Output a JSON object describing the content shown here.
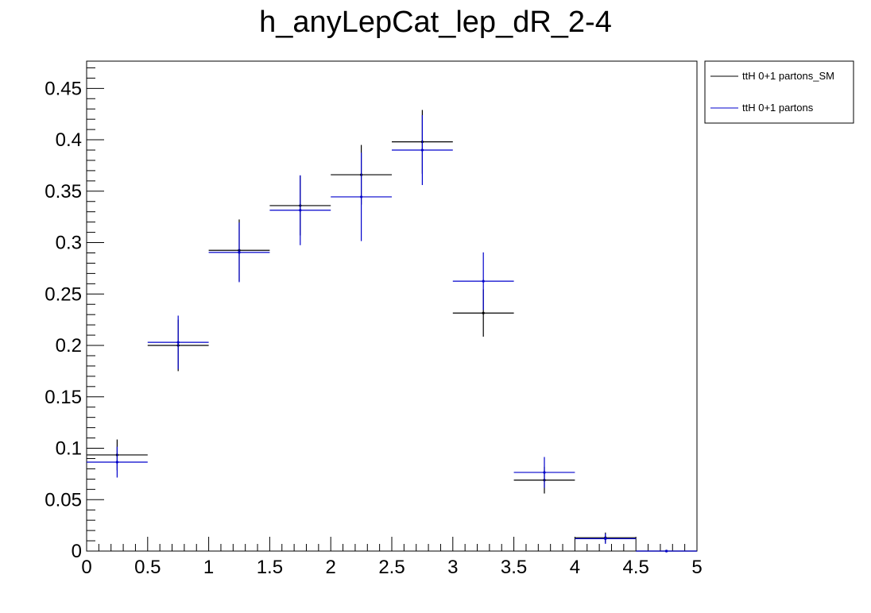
{
  "chart_data": {
    "type": "scatter",
    "title": "h_anyLepCat_lep_dR_2-4",
    "xlabel": "",
    "ylabel": "",
    "xlim": [
      0,
      5
    ],
    "ylim": [
      0,
      0.4765
    ],
    "x_ticks": [
      "0",
      "0.5",
      "1",
      "1.5",
      "2",
      "2.5",
      "3",
      "3.5",
      "4",
      "4.5",
      "5"
    ],
    "y_ticks": [
      "0",
      "0.05",
      "0.1",
      "0.15",
      "0.2",
      "0.25",
      "0.3",
      "0.35",
      "0.4",
      "0.45"
    ],
    "bin_width": 0.5,
    "grid": false,
    "legend_position": "top-right outside",
    "series": [
      {
        "name": "ttH 0+1 partons_SM",
        "color": "#000000",
        "x": [
          0.25,
          0.75,
          1.25,
          1.75,
          2.25,
          2.75,
          3.25,
          3.75,
          4.25,
          4.75
        ],
        "y": [
          0.0935,
          0.2,
          0.2925,
          0.336,
          0.366,
          0.398,
          0.2315,
          0.069,
          0.013,
          0.0
        ],
        "yerr": [
          0.015,
          0.025,
          0.03,
          0.029,
          0.029,
          0.031,
          0.023,
          0.013,
          0.005,
          0.0
        ]
      },
      {
        "name": "ttH 0+1 partons",
        "color": "#0000cc",
        "x": [
          0.25,
          0.75,
          1.25,
          1.75,
          2.25,
          2.75,
          3.25,
          3.75,
          4.25,
          4.75
        ],
        "y": [
          0.0865,
          0.203,
          0.2905,
          0.3315,
          0.3445,
          0.39,
          0.2625,
          0.0765,
          0.012,
          0.0
        ],
        "yerr": [
          0.015,
          0.026,
          0.029,
          0.034,
          0.043,
          0.034,
          0.028,
          0.015,
          0.005,
          0.0
        ]
      }
    ]
  }
}
